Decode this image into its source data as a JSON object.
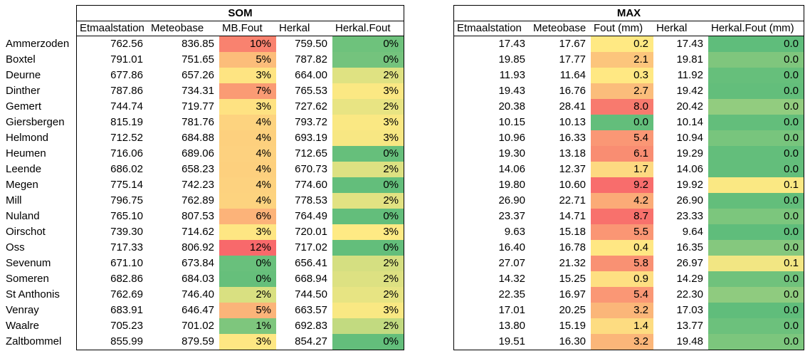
{
  "colors": {
    "scale_red": "#F8696B",
    "scale_yellow": "#FFEB84",
    "scale_green": "#63BE7B",
    "border": "#000000"
  },
  "stations": [
    "Ammerzoden",
    "Boxtel",
    "Deurne",
    "Dinther",
    "Gemert",
    "Giersbergen",
    "Helmond",
    "Heumen",
    "Leende",
    "Megen",
    "Mill",
    "Nuland",
    "Oirschot",
    "Oss",
    "Sevenum",
    "Someren",
    "St Anthonis",
    "Venray",
    "Waalre",
    "Zaltbommel"
  ],
  "tables": {
    "som": {
      "title": "SOM",
      "columns": [
        "Etmaalstation",
        "Meteobase",
        "MB.Fout",
        "Herkal",
        "Herkal.Fout"
      ],
      "rows": [
        {
          "etmaalstation": "762.56",
          "meteobase": "836.85",
          "fout": "10%",
          "fout_bg": "#F9826F",
          "herkal": "759.50",
          "herkal_fout": "0%",
          "herkal_fout_bg": "#6EC27C"
        },
        {
          "etmaalstation": "791.01",
          "meteobase": "751.65",
          "fout": "5%",
          "fout_bg": "#FCBD7A",
          "herkal": "787.82",
          "herkal_fout": "0%",
          "herkal_fout_bg": "#74C37D"
        },
        {
          "etmaalstation": "677.86",
          "meteobase": "657.26",
          "fout": "3%",
          "fout_bg": "#FEE482",
          "herkal": "664.00",
          "herkal_fout": "2%",
          "herkal_fout_bg": "#DFE282"
        },
        {
          "etmaalstation": "787.86",
          "meteobase": "734.31",
          "fout": "7%",
          "fout_bg": "#FA9B74",
          "herkal": "765.53",
          "herkal_fout": "3%",
          "herkal_fout_bg": "#FBE883"
        },
        {
          "etmaalstation": "744.74",
          "meteobase": "719.77",
          "fout": "3%",
          "fout_bg": "#FEE282",
          "herkal": "727.62",
          "herkal_fout": "2%",
          "herkal_fout_bg": "#E8E483"
        },
        {
          "etmaalstation": "815.19",
          "meteobase": "781.76",
          "fout": "4%",
          "fout_bg": "#FDD37F",
          "herkal": "793.72",
          "herkal_fout": "3%",
          "herkal_fout_bg": "#FAE883"
        },
        {
          "etmaalstation": "712.52",
          "meteobase": "684.88",
          "fout": "4%",
          "fout_bg": "#FDD07E",
          "herkal": "693.19",
          "herkal_fout": "3%",
          "herkal_fout_bg": "#F7E783"
        },
        {
          "etmaalstation": "716.06",
          "meteobase": "689.06",
          "fout": "4%",
          "fout_bg": "#FDD17F",
          "herkal": "712.65",
          "herkal_fout": "0%",
          "herkal_fout_bg": "#66BF7B"
        },
        {
          "etmaalstation": "686.02",
          "meteobase": "658.23",
          "fout": "4%",
          "fout_bg": "#FDD07E",
          "herkal": "670.73",
          "herkal_fout": "2%",
          "herkal_fout_bg": "#DDE182"
        },
        {
          "etmaalstation": "775.14",
          "meteobase": "742.23",
          "fout": "4%",
          "fout_bg": "#FDD27F",
          "herkal": "774.60",
          "herkal_fout": "0%",
          "herkal_fout_bg": "#63BE7B"
        },
        {
          "etmaalstation": "796.75",
          "meteobase": "762.89",
          "fout": "4%",
          "fout_bg": "#FDD37F",
          "herkal": "778.53",
          "herkal_fout": "2%",
          "herkal_fout_bg": "#E2E282"
        },
        {
          "etmaalstation": "765.10",
          "meteobase": "807.53",
          "fout": "6%",
          "fout_bg": "#FCB379",
          "herkal": "764.49",
          "herkal_fout": "0%",
          "herkal_fout_bg": "#63BE7B"
        },
        {
          "etmaalstation": "739.30",
          "meteobase": "714.62",
          "fout": "3%",
          "fout_bg": "#FEE683",
          "herkal": "720.01",
          "herkal_fout": "3%",
          "herkal_fout_bg": "#FEEA84"
        },
        {
          "etmaalstation": "717.33",
          "meteobase": "806.92",
          "fout": "12%",
          "fout_bg": "#F8696B",
          "herkal": "717.02",
          "herkal_fout": "0%",
          "herkal_fout_bg": "#63BE7B"
        },
        {
          "etmaalstation": "671.10",
          "meteobase": "673.84",
          "fout": "0%",
          "fout_bg": "#69C07C",
          "herkal": "656.41",
          "herkal_fout": "2%",
          "herkal_fout_bg": "#D5DF81"
        },
        {
          "etmaalstation": "682.86",
          "meteobase": "684.03",
          "fout": "0%",
          "fout_bg": "#66BF7B",
          "herkal": "668.94",
          "herkal_fout": "2%",
          "herkal_fout_bg": "#DDE182"
        },
        {
          "etmaalstation": "762.69",
          "meteobase": "746.40",
          "fout": "2%",
          "fout_bg": "#D9E081",
          "herkal": "744.50",
          "herkal_fout": "2%",
          "herkal_fout_bg": "#E7E483"
        },
        {
          "etmaalstation": "683.91",
          "meteobase": "646.47",
          "fout": "5%",
          "fout_bg": "#FBB479",
          "herkal": "663.57",
          "herkal_fout": "3%",
          "herkal_fout_bg": "#F9E883"
        },
        {
          "etmaalstation": "705.23",
          "meteobase": "701.02",
          "fout": "1%",
          "fout_bg": "#7EC67D",
          "herkal": "692.83",
          "herkal_fout": "2%",
          "herkal_fout_bg": "#C2DA80"
        },
        {
          "etmaalstation": "855.99",
          "meteobase": "879.59",
          "fout": "3%",
          "fout_bg": "#FEE783",
          "herkal": "854.27",
          "herkal_fout": "0%",
          "herkal_fout_bg": "#63BE7B"
        }
      ]
    },
    "max": {
      "title": "MAX",
      "columns": [
        "Etmaalstation",
        "Meteobase",
        "Fout (mm)",
        "Herkal",
        "Herkal.Fout (mm)"
      ],
      "rows": [
        {
          "etmaalstation": "17.43",
          "meteobase": "17.67",
          "fout": "0.2",
          "fout_bg": "#FFE983",
          "herkal": "17.43",
          "herkal_fout": "0.0",
          "herkal_fout_bg": "#5FBD7B"
        },
        {
          "etmaalstation": "19.85",
          "meteobase": "17.77",
          "fout": "2.1",
          "fout_bg": "#FCC57C",
          "herkal": "19.81",
          "herkal_fout": "0.0",
          "herkal_fout_bg": "#7FC67D"
        },
        {
          "etmaalstation": "11.93",
          "meteobase": "11.64",
          "fout": "0.3",
          "fout_bg": "#FFE883",
          "herkal": "11.92",
          "herkal_fout": "0.0",
          "herkal_fout_bg": "#66BF7B"
        },
        {
          "etmaalstation": "19.43",
          "meteobase": "16.76",
          "fout": "2.7",
          "fout_bg": "#FBBD7B",
          "herkal": "19.42",
          "herkal_fout": "0.0",
          "herkal_fout_bg": "#63BE7B"
        },
        {
          "etmaalstation": "20.38",
          "meteobase": "28.41",
          "fout": "8.0",
          "fout_bg": "#F87A6E",
          "herkal": "20.42",
          "herkal_fout": "0.0",
          "herkal_fout_bg": "#92CC7F"
        },
        {
          "etmaalstation": "10.15",
          "meteobase": "10.13",
          "fout": "0.0",
          "fout_bg": "#63BE7B",
          "herkal": "10.14",
          "herkal_fout": "0.0",
          "herkal_fout_bg": "#63BE7B"
        },
        {
          "etmaalstation": "10.96",
          "meteobase": "16.33",
          "fout": "5.4",
          "fout_bg": "#FA9775",
          "herkal": "10.94",
          "herkal_fout": "0.0",
          "herkal_fout_bg": "#78C57D"
        },
        {
          "etmaalstation": "19.30",
          "meteobase": "13.18",
          "fout": "6.1",
          "fout_bg": "#F98D72",
          "herkal": "19.29",
          "herkal_fout": "0.0",
          "herkal_fout_bg": "#63BE7B"
        },
        {
          "etmaalstation": "14.06",
          "meteobase": "12.37",
          "fout": "1.7",
          "fout_bg": "#FDD981",
          "herkal": "14.06",
          "herkal_fout": "0.0",
          "herkal_fout_bg": "#63BE7B"
        },
        {
          "etmaalstation": "19.80",
          "meteobase": "10.60",
          "fout": "9.2",
          "fout_bg": "#F86D6C",
          "herkal": "19.92",
          "herkal_fout": "0.1",
          "herkal_fout_bg": "#FAE883"
        },
        {
          "etmaalstation": "26.90",
          "meteobase": "22.71",
          "fout": "4.2",
          "fout_bg": "#FBAB77",
          "herkal": "26.90",
          "herkal_fout": "0.0",
          "herkal_fout_bg": "#63BE7B"
        },
        {
          "etmaalstation": "23.37",
          "meteobase": "14.71",
          "fout": "8.7",
          "fout_bg": "#F8716C",
          "herkal": "23.33",
          "herkal_fout": "0.0",
          "herkal_fout_bg": "#7CC67D"
        },
        {
          "etmaalstation": "9.63",
          "meteobase": "15.18",
          "fout": "5.5",
          "fout_bg": "#FA9674",
          "herkal": "9.64",
          "herkal_fout": "0.0",
          "herkal_fout_bg": "#5FBD7B"
        },
        {
          "etmaalstation": "16.40",
          "meteobase": "16.78",
          "fout": "0.4",
          "fout_bg": "#FFE783",
          "herkal": "16.35",
          "herkal_fout": "0.0",
          "herkal_fout_bg": "#85C87E"
        },
        {
          "etmaalstation": "27.07",
          "meteobase": "21.32",
          "fout": "5.8",
          "fout_bg": "#F99173",
          "herkal": "26.97",
          "herkal_fout": "0.1",
          "herkal_fout_bg": "#F2E683"
        },
        {
          "etmaalstation": "14.32",
          "meteobase": "15.25",
          "fout": "0.9",
          "fout_bg": "#FEDF82",
          "herkal": "14.29",
          "herkal_fout": "0.0",
          "herkal_fout_bg": "#70C27C"
        },
        {
          "etmaalstation": "22.35",
          "meteobase": "16.97",
          "fout": "5.4",
          "fout_bg": "#FA9775",
          "herkal": "22.30",
          "herkal_fout": "0.0",
          "herkal_fout_bg": "#8FCB7F"
        },
        {
          "etmaalstation": "17.01",
          "meteobase": "20.25",
          "fout": "3.2",
          "fout_bg": "#FBB679",
          "herkal": "17.03",
          "herkal_fout": "0.0",
          "herkal_fout_bg": "#60BD7B"
        },
        {
          "etmaalstation": "13.80",
          "meteobase": "15.19",
          "fout": "1.4",
          "fout_bg": "#FDDC81",
          "herkal": "13.77",
          "herkal_fout": "0.0",
          "herkal_fout_bg": "#6CC17C"
        },
        {
          "etmaalstation": "19.51",
          "meteobase": "16.30",
          "fout": "3.2",
          "fout_bg": "#FBB679",
          "herkal": "19.48",
          "herkal_fout": "0.0",
          "herkal_fout_bg": "#7CC67D"
        }
      ]
    }
  }
}
